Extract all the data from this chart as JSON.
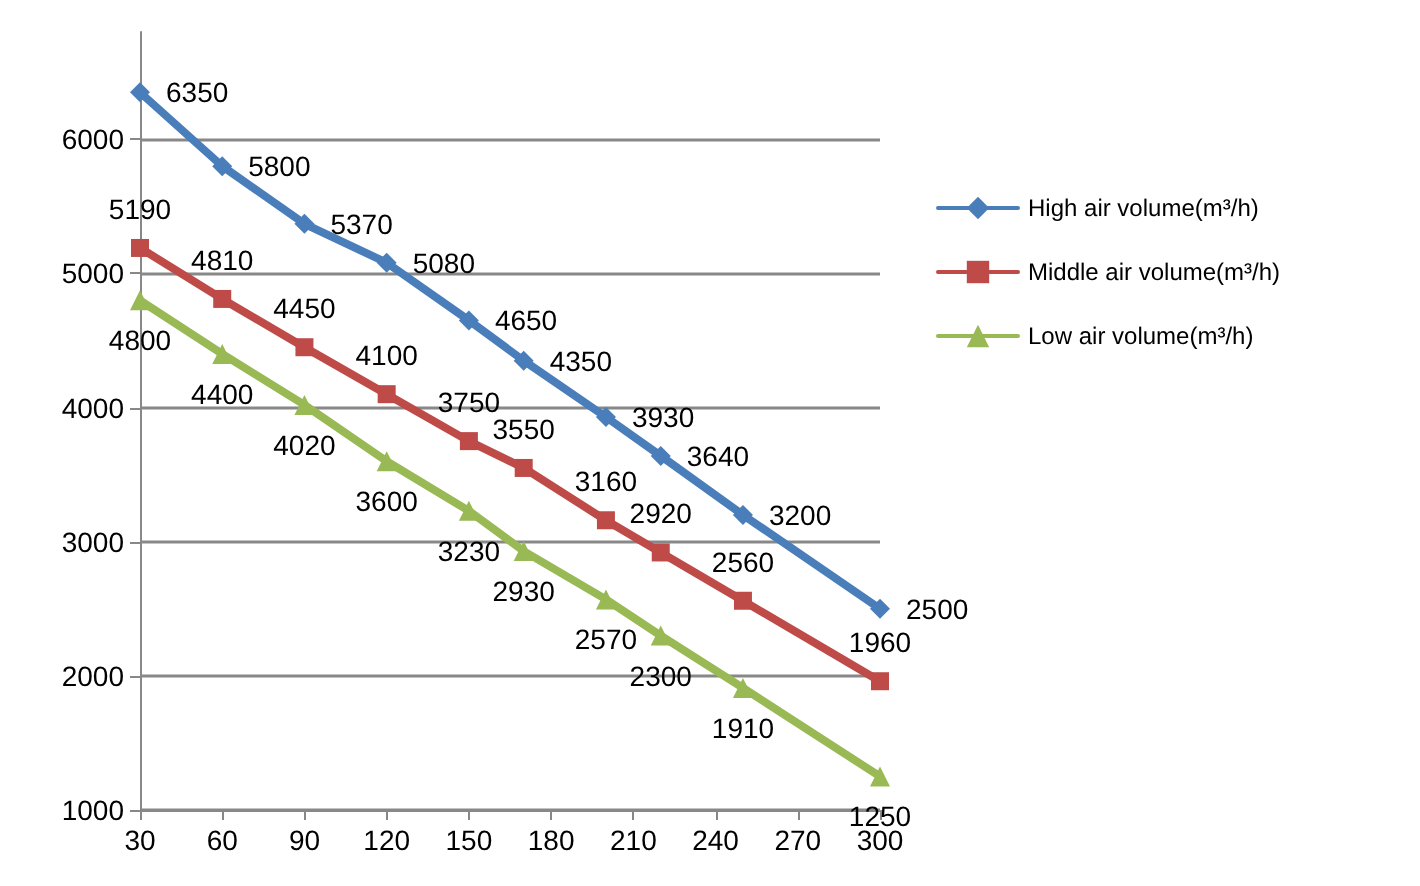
{
  "chart_data": {
    "type": "line",
    "x": [
      30,
      60,
      90,
      120,
      150,
      170,
      200,
      220,
      250,
      300
    ],
    "series": [
      {
        "name": "High air volume(m³/h)",
        "color": "#4a7ebb",
        "marker": "diamond",
        "values": [
          6350,
          5800,
          5370,
          5080,
          4650,
          4350,
          3930,
          3640,
          3200,
          2500
        ]
      },
      {
        "name": "Middle air volume(m³/h)",
        "color": "#be4b48",
        "marker": "square",
        "values": [
          5190,
          4810,
          4450,
          4100,
          3750,
          3550,
          3160,
          2920,
          2560,
          1960
        ]
      },
      {
        "name": "Low air volume(m³/h)",
        "color": "#98b954",
        "marker": "triangle",
        "values": [
          4800,
          4400,
          4020,
          3600,
          3230,
          2930,
          2570,
          2300,
          1910,
          1250
        ]
      }
    ],
    "data_labels": true,
    "xlim": [
      30,
      300
    ],
    "xticks": [
      30,
      60,
      90,
      120,
      150,
      180,
      210,
      240,
      270,
      300
    ],
    "ylim": [
      1000,
      6800
    ],
    "yticks": [
      1000,
      2000,
      3000,
      4000,
      5000,
      6000
    ],
    "grid": "y",
    "legend": "right",
    "line_style": "solid"
  }
}
